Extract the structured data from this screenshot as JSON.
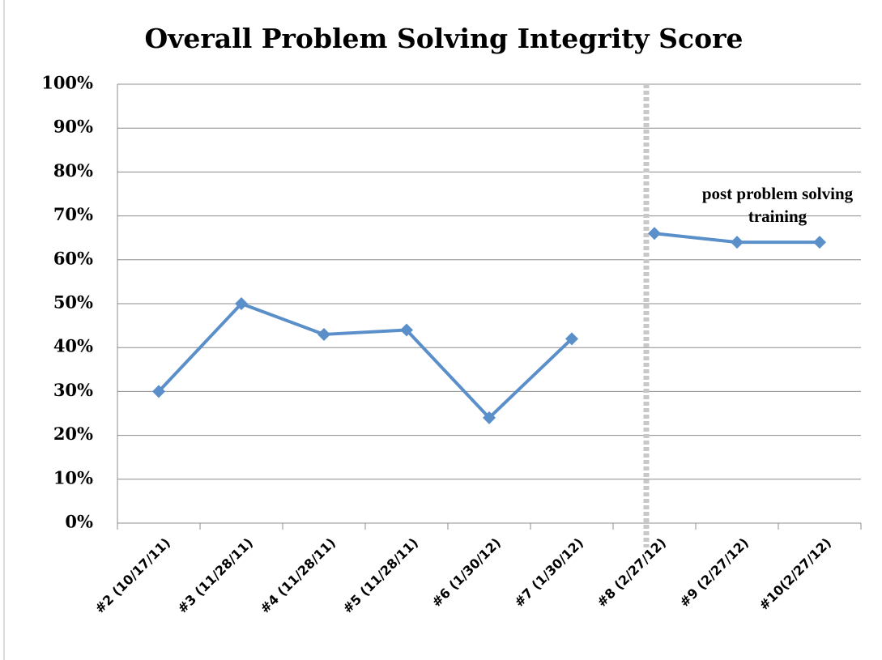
{
  "chart_data": {
    "type": "line",
    "title": "Overall Problem Solving Integrity Score",
    "annotation": [
      "post problem solving",
      "training"
    ],
    "categories": [
      "#2 (10/17/11)",
      "#3 (11/28/11)",
      "#4 (11/28/11)",
      "#5 (11/28/11)",
      "#6 (1/30/12)",
      "#7 (1/30/12)",
      "#8 (2/27/12)",
      "#9 (2/27/12)",
      "#10(2/27/12)"
    ],
    "series": [
      {
        "color": "#5b8fc9",
        "values": [
          30,
          50,
          43,
          44,
          24,
          42,
          null,
          null,
          null
        ]
      },
      {
        "color": "#5b8fc9",
        "values": [
          null,
          null,
          null,
          null,
          null,
          null,
          66,
          64,
          64
        ]
      }
    ],
    "ylim": [
      0,
      100
    ],
    "yticks": [
      {
        "value": 0,
        "label": "0%"
      },
      {
        "value": 10,
        "label": "10%"
      },
      {
        "value": 20,
        "label": "20%"
      },
      {
        "value": 30,
        "label": "30%"
      },
      {
        "value": 40,
        "label": "40%"
      },
      {
        "value": 50,
        "label": "50%"
      },
      {
        "value": 60,
        "label": "60%"
      },
      {
        "value": 70,
        "label": "70%"
      },
      {
        "value": 80,
        "label": "80%"
      },
      {
        "value": 90,
        "label": "90%"
      },
      {
        "value": 100,
        "label": "100%"
      }
    ],
    "grid": true
  }
}
